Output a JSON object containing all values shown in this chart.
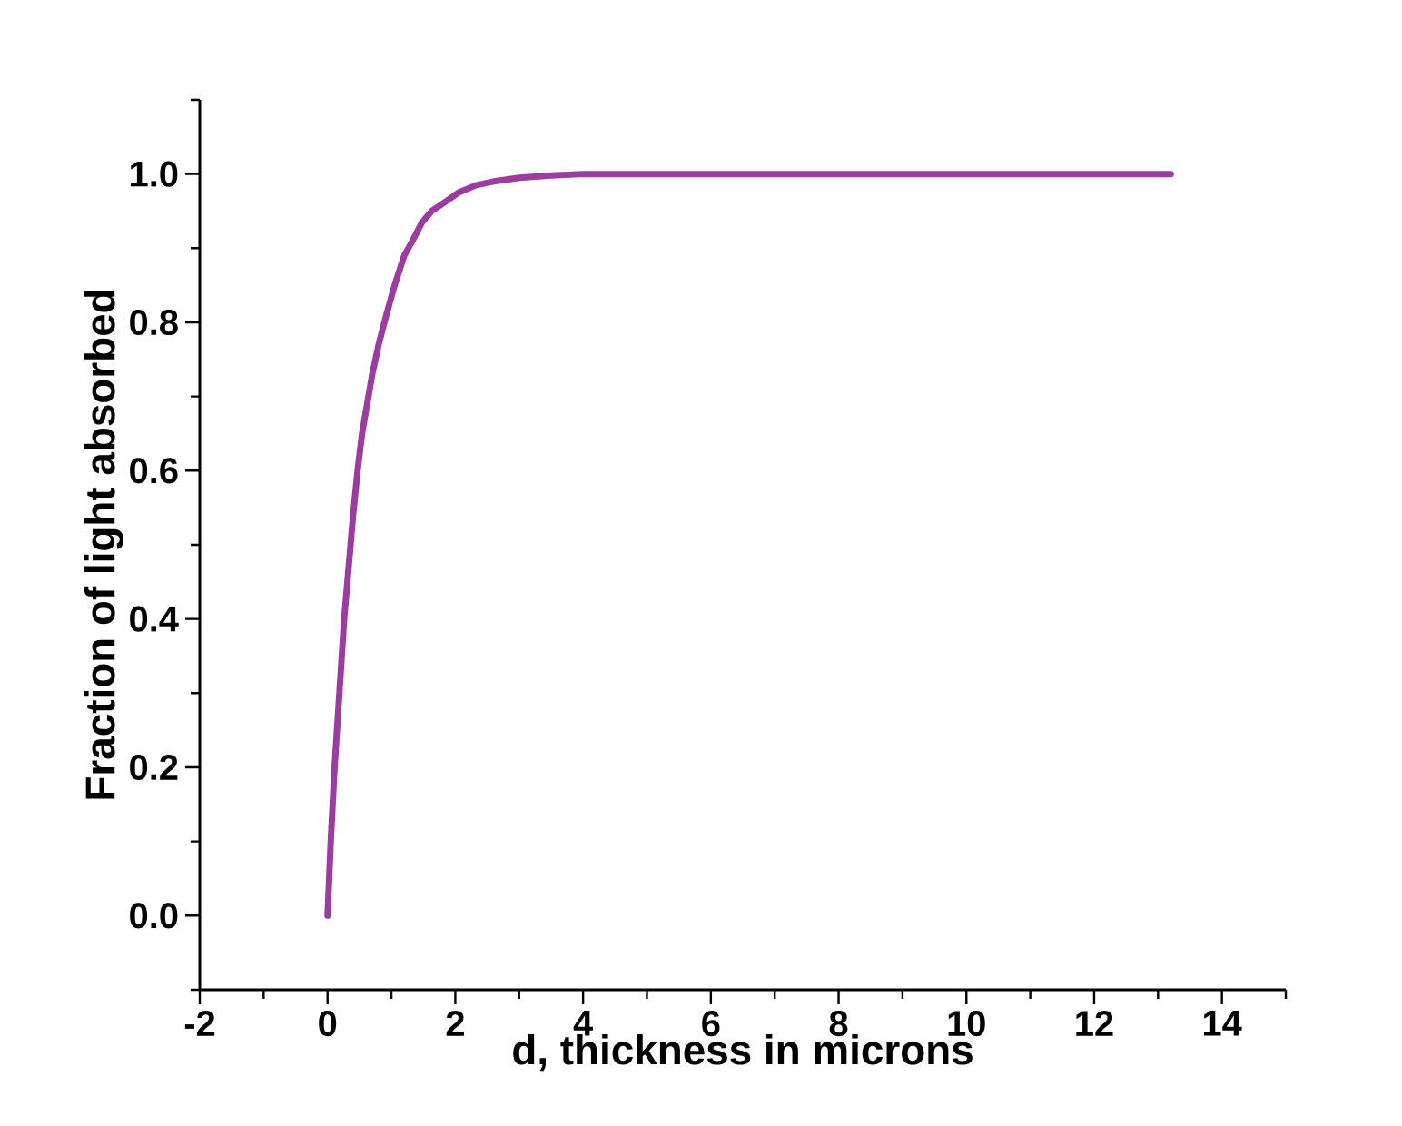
{
  "chart_data": {
    "type": "line",
    "xlabel": "d, thickness in microns",
    "ylabel": "Fraction of light absorbed",
    "x": [
      0,
      0.05,
      0.11,
      0.2,
      0.26,
      0.33,
      0.4,
      0.47,
      0.54,
      0.62,
      0.7,
      0.8,
      0.92,
      1.05,
      1.2,
      1.33,
      1.48,
      1.63,
      1.8,
      2.05,
      2.33,
      2.6,
      3,
      3.5,
      4,
      5,
      8,
      13.2
    ],
    "series": [
      {
        "color": "#9b3d9e",
        "values": [
          0,
          0.1,
          0.2,
          0.32,
          0.4,
          0.47,
          0.54,
          0.6,
          0.65,
          0.69,
          0.73,
          0.77,
          0.81,
          0.85,
          0.89,
          0.91,
          0.935,
          0.95,
          0.96,
          0.975,
          0.985,
          0.99,
          0.995,
          0.998,
          1.0,
          1.0,
          1.0,
          1.0
        ]
      }
    ],
    "xlim": [
      -2,
      15
    ],
    "ylim": [
      -0.1,
      1.1
    ],
    "xticks": [
      -2,
      {
        "value": -1,
        "label": null
      },
      0,
      {
        "value": 1,
        "label": null
      },
      2,
      {
        "value": 3,
        "label": null
      },
      4,
      {
        "value": 5,
        "label": null
      },
      6,
      {
        "value": 7,
        "label": null
      },
      8,
      {
        "value": 9,
        "label": null
      },
      10,
      {
        "value": 11,
        "label": null
      },
      12,
      {
        "value": 13,
        "label": null
      },
      14,
      {
        "value": 15,
        "label": null
      }
    ],
    "yticks": [
      {
        "value": -0.1,
        "label": null
      },
      {
        "value": 0,
        "label": "0.0"
      },
      {
        "value": 0.1,
        "label": null
      },
      {
        "value": 0.2,
        "label": "0.2"
      },
      {
        "value": 0.3,
        "label": null
      },
      {
        "value": 0.4,
        "label": "0.4"
      },
      {
        "value": 0.5,
        "label": null
      },
      {
        "value": 0.6,
        "label": "0.6"
      },
      {
        "value": 0.7,
        "label": null
      },
      {
        "value": 0.8,
        "label": "0.8"
      },
      {
        "value": 0.9,
        "label": null
      },
      {
        "value": 1.0,
        "label": "1.0"
      },
      {
        "value": 1.1,
        "label": null
      }
    ],
    "marker": "none",
    "line_style": "solid"
  }
}
